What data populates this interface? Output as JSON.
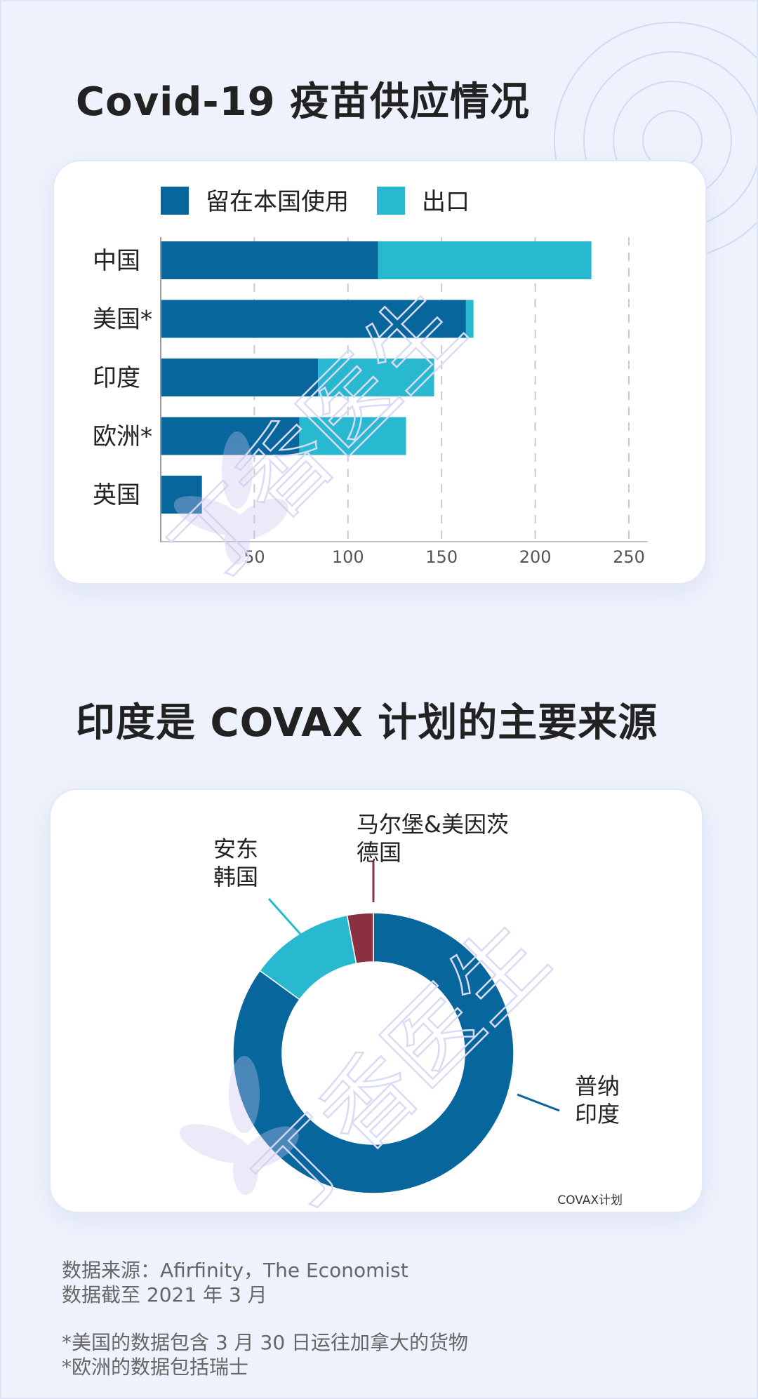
{
  "page": {
    "background": "#eef2fc",
    "title1": "Covid-19 疫苗供应情况",
    "title2": "印度是 COVAX 计划的主要来源",
    "watermark": "丁香医生"
  },
  "chart_data": [
    {
      "type": "bar",
      "orientation": "horizontal",
      "stacked": true,
      "title": "Covid-19 疫苗供应情况",
      "categories": [
        "中国",
        "美国*",
        "印度",
        "欧洲*",
        "英国"
      ],
      "series": [
        {
          "name": "留在本国使用",
          "color": "#07669b",
          "values": [
            116,
            163,
            84,
            74,
            22
          ]
        },
        {
          "name": "出口",
          "color": "#28b8cf",
          "values": [
            114,
            4,
            62,
            57,
            0
          ]
        }
      ],
      "xlim": [
        0,
        260
      ],
      "xticks": [
        50,
        100,
        150,
        200,
        250
      ],
      "grid": "vertical dashed",
      "legend": "top"
    },
    {
      "type": "pie",
      "donut": true,
      "title": "印度是 COVAX 计划的主要来源",
      "source_label": "COVAX计划",
      "slices": [
        {
          "label": "普纳 印度",
          "lines": [
            "普纳",
            "印度"
          ],
          "value": 85,
          "color": "#07669b"
        },
        {
          "label": "安东 韩国",
          "lines": [
            "安东",
            "韩国"
          ],
          "value": 12,
          "color": "#28b8cf"
        },
        {
          "label": "马尔堡&美因茨 德国",
          "lines": [
            "马尔堡&美因茨",
            "德国"
          ],
          "value": 3,
          "color": "#8b3040"
        }
      ]
    }
  ],
  "footer": {
    "source": "数据来源：Afirfinity，The Economist",
    "date": "数据截至 2021 年 3 月",
    "note1": "*美国的数据包含 3 月 30 日运往加拿大的货物",
    "note2": "*欧洲的数据包括瑞士"
  }
}
